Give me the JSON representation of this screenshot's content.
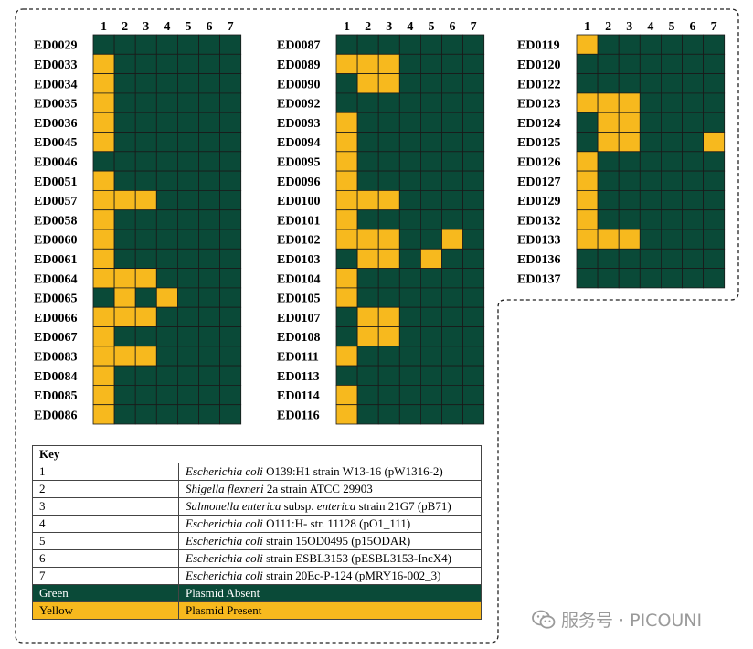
{
  "chart_data": {
    "type": "heatmap",
    "columns": [
      "1",
      "2",
      "3",
      "4",
      "5",
      "6",
      "7"
    ],
    "colors": {
      "absent": "#0a4a38",
      "present": "#f7b91e"
    },
    "panels": [
      {
        "rows": [
          {
            "id": "ED0029",
            "values": [
              0,
              0,
              0,
              0,
              0,
              0,
              0
            ]
          },
          {
            "id": "ED0033",
            "values": [
              1,
              0,
              0,
              0,
              0,
              0,
              0
            ]
          },
          {
            "id": "ED0034",
            "values": [
              1,
              0,
              0,
              0,
              0,
              0,
              0
            ]
          },
          {
            "id": "ED0035",
            "values": [
              1,
              0,
              0,
              0,
              0,
              0,
              0
            ]
          },
          {
            "id": "ED0036",
            "values": [
              1,
              0,
              0,
              0,
              0,
              0,
              0
            ]
          },
          {
            "id": "ED0045",
            "values": [
              1,
              0,
              0,
              0,
              0,
              0,
              0
            ]
          },
          {
            "id": "ED0046",
            "values": [
              0,
              0,
              0,
              0,
              0,
              0,
              0
            ]
          },
          {
            "id": "ED0051",
            "values": [
              1,
              0,
              0,
              0,
              0,
              0,
              0
            ]
          },
          {
            "id": "ED0057",
            "values": [
              1,
              1,
              1,
              0,
              0,
              0,
              0
            ]
          },
          {
            "id": "ED0058",
            "values": [
              1,
              0,
              0,
              0,
              0,
              0,
              0
            ]
          },
          {
            "id": "ED0060",
            "values": [
              1,
              0,
              0,
              0,
              0,
              0,
              0
            ]
          },
          {
            "id": "ED0061",
            "values": [
              1,
              0,
              0,
              0,
              0,
              0,
              0
            ]
          },
          {
            "id": "ED0064",
            "values": [
              1,
              1,
              1,
              0,
              0,
              0,
              0
            ]
          },
          {
            "id": "ED0065",
            "values": [
              0,
              1,
              0,
              1,
              0,
              0,
              0
            ]
          },
          {
            "id": "ED0066",
            "values": [
              1,
              1,
              1,
              0,
              0,
              0,
              0
            ]
          },
          {
            "id": "ED0067",
            "values": [
              1,
              0,
              0,
              0,
              0,
              0,
              0
            ]
          },
          {
            "id": "ED0083",
            "values": [
              1,
              1,
              1,
              0,
              0,
              0,
              0
            ]
          },
          {
            "id": "ED0084",
            "values": [
              1,
              0,
              0,
              0,
              0,
              0,
              0
            ]
          },
          {
            "id": "ED0085",
            "values": [
              1,
              0,
              0,
              0,
              0,
              0,
              0
            ]
          },
          {
            "id": "ED0086",
            "values": [
              1,
              0,
              0,
              0,
              0,
              0,
              0
            ]
          }
        ]
      },
      {
        "rows": [
          {
            "id": "ED0087",
            "values": [
              0,
              0,
              0,
              0,
              0,
              0,
              0
            ]
          },
          {
            "id": "ED0089",
            "values": [
              1,
              1,
              1,
              0,
              0,
              0,
              0
            ]
          },
          {
            "id": "ED0090",
            "values": [
              0,
              1,
              1,
              0,
              0,
              0,
              0
            ]
          },
          {
            "id": "ED0092",
            "values": [
              0,
              0,
              0,
              0,
              0,
              0,
              0
            ]
          },
          {
            "id": "ED0093",
            "values": [
              1,
              0,
              0,
              0,
              0,
              0,
              0
            ]
          },
          {
            "id": "ED0094",
            "values": [
              1,
              0,
              0,
              0,
              0,
              0,
              0
            ]
          },
          {
            "id": "ED0095",
            "values": [
              1,
              0,
              0,
              0,
              0,
              0,
              0
            ]
          },
          {
            "id": "ED0096",
            "values": [
              1,
              0,
              0,
              0,
              0,
              0,
              0
            ]
          },
          {
            "id": "ED0100",
            "values": [
              1,
              1,
              1,
              0,
              0,
              0,
              0
            ]
          },
          {
            "id": "ED0101",
            "values": [
              1,
              0,
              0,
              0,
              0,
              0,
              0
            ]
          },
          {
            "id": "ED0102",
            "values": [
              1,
              1,
              1,
              0,
              0,
              1,
              0
            ]
          },
          {
            "id": "ED0103",
            "values": [
              0,
              1,
              1,
              0,
              1,
              0,
              0
            ]
          },
          {
            "id": "ED0104",
            "values": [
              1,
              0,
              0,
              0,
              0,
              0,
              0
            ]
          },
          {
            "id": "ED0105",
            "values": [
              1,
              0,
              0,
              0,
              0,
              0,
              0
            ]
          },
          {
            "id": "ED0107",
            "values": [
              0,
              1,
              1,
              0,
              0,
              0,
              0
            ]
          },
          {
            "id": "ED0108",
            "values": [
              0,
              1,
              1,
              0,
              0,
              0,
              0
            ]
          },
          {
            "id": "ED0111",
            "values": [
              1,
              0,
              0,
              0,
              0,
              0,
              0
            ]
          },
          {
            "id": "ED0113",
            "values": [
              0,
              0,
              0,
              0,
              0,
              0,
              0
            ]
          },
          {
            "id": "ED0114",
            "values": [
              1,
              0,
              0,
              0,
              0,
              0,
              0
            ]
          },
          {
            "id": "ED0116",
            "values": [
              1,
              0,
              0,
              0,
              0,
              0,
              0
            ]
          }
        ]
      },
      {
        "rows": [
          {
            "id": "ED0119",
            "values": [
              1,
              0,
              0,
              0,
              0,
              0,
              0
            ]
          },
          {
            "id": "ED0120",
            "values": [
              0,
              0,
              0,
              0,
              0,
              0,
              0
            ]
          },
          {
            "id": "ED0122",
            "values": [
              0,
              0,
              0,
              0,
              0,
              0,
              0
            ]
          },
          {
            "id": "ED0123",
            "values": [
              1,
              1,
              1,
              0,
              0,
              0,
              0
            ]
          },
          {
            "id": "ED0124",
            "values": [
              0,
              1,
              1,
              0,
              0,
              0,
              0
            ]
          },
          {
            "id": "ED0125",
            "values": [
              0,
              1,
              1,
              0,
              0,
              0,
              1
            ]
          },
          {
            "id": "ED0126",
            "values": [
              1,
              0,
              0,
              0,
              0,
              0,
              0
            ]
          },
          {
            "id": "ED0127",
            "values": [
              1,
              0,
              0,
              0,
              0,
              0,
              0
            ]
          },
          {
            "id": "ED0129",
            "values": [
              1,
              0,
              0,
              0,
              0,
              0,
              0
            ]
          },
          {
            "id": "ED0132",
            "values": [
              1,
              0,
              0,
              0,
              0,
              0,
              0
            ]
          },
          {
            "id": "ED0133",
            "values": [
              1,
              1,
              1,
              0,
              0,
              0,
              0
            ]
          },
          {
            "id": "ED0136",
            "values": [
              0,
              0,
              0,
              0,
              0,
              0,
              0
            ]
          },
          {
            "id": "ED0137",
            "values": [
              0,
              0,
              0,
              0,
              0,
              0,
              0
            ]
          }
        ]
      }
    ]
  },
  "key": {
    "title": "Key",
    "items": [
      {
        "num": "1",
        "italic": "Escherichia coli",
        "rest": " O139:H1 strain W13-16 (pW1316-2)"
      },
      {
        "num": "2",
        "italic": "Shigella flexneri",
        "rest": " 2a strain ATCC 29903"
      },
      {
        "num": "3",
        "italic": "Salmonella enterica",
        "rest": " subsp. ",
        "italic2": "enterica",
        "rest2": " strain 21G7 (pB71)"
      },
      {
        "num": "4",
        "italic": "Escherichia coli",
        "rest": " O111:H- str. 11128 (pO1_111)"
      },
      {
        "num": "5",
        "italic": "Escherichia coli",
        "rest": " strain 15OD0495 (p15ODAR)"
      },
      {
        "num": "6",
        "italic": "Escherichia coli",
        "rest": " strain ESBL3153 (pESBL3153-IncX4)"
      },
      {
        "num": "7",
        "italic": "Escherichia coli",
        "rest": " strain 20Ec-P-124 (pMRY16-002_3)"
      }
    ],
    "green_label": "Green",
    "green_meaning": "Plasmid Absent",
    "yellow_label": "Yellow",
    "yellow_meaning": "Plasmid Present"
  },
  "watermark": {
    "text": "服务号 · PICOUNI",
    "icon": "wechat-icon"
  }
}
